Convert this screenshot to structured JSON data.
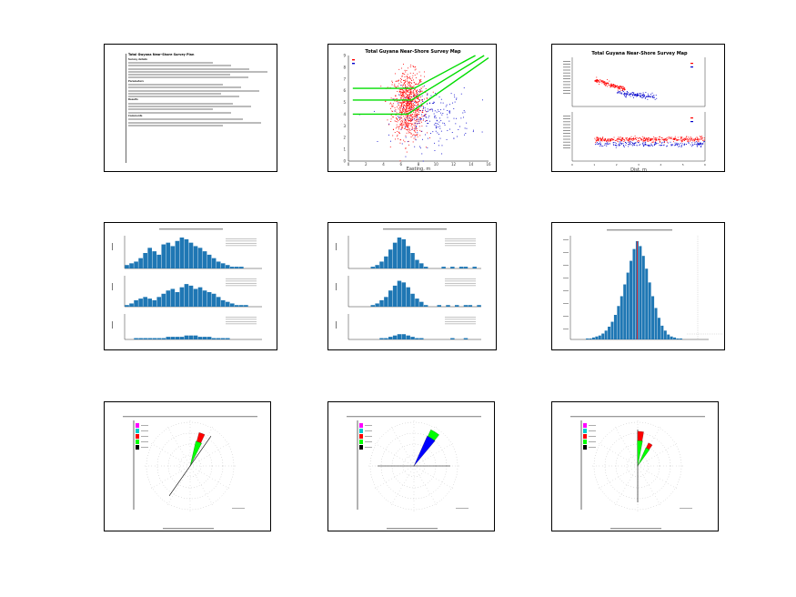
{
  "summary_panel": {
    "title": "Total Gwyana Near-Shore Survey Plan",
    "sections": [
      {
        "heading": "Survey details",
        "lines": 6
      },
      {
        "heading": "Parameters",
        "lines": 5
      },
      {
        "heading": "Results",
        "lines": 4
      },
      {
        "heading": "Comments",
        "lines": 3
      }
    ]
  },
  "chart_data": [
    {
      "id": "scatter_survey",
      "type": "scatter",
      "title": "Total Guyana Near-Shore Survey Map",
      "xlabel": "Easting, m",
      "ylabel": "",
      "xlim": [
        0,
        16
      ],
      "ylim": [
        0,
        9
      ],
      "xticks": [
        "0",
        "2",
        "4",
        "6",
        "8",
        "10",
        "12",
        "14",
        "16"
      ],
      "yticks": [
        "0",
        "1",
        "2",
        "3",
        "4",
        "5",
        "6",
        "7",
        "8",
        "9"
      ],
      "series": [
        {
          "name": "",
          "color": "#ff0000",
          "cluster": {
            "cx": 6.8,
            "cy": 4.8,
            "sx": 0.9,
            "sy": 1.4,
            "n": 900
          }
        },
        {
          "name": "",
          "color": "#0000cc",
          "cluster": {
            "cx": 9.5,
            "cy": 3.8,
            "sx": 2.2,
            "sy": 1.2,
            "n": 220
          }
        }
      ],
      "lines": [
        {
          "color": "#00dd00",
          "points": [
            [
              0.5,
              6.2
            ],
            [
              7.5,
              6.2
            ],
            [
              14.5,
              9.0
            ]
          ]
        },
        {
          "color": "#00dd00",
          "points": [
            [
              0.5,
              5.2
            ],
            [
              7.2,
              5.2
            ],
            [
              15.5,
              9.0
            ]
          ]
        },
        {
          "color": "#00dd00",
          "points": [
            [
              0.5,
              4.0
            ],
            [
              6.8,
              4.0
            ],
            [
              16.0,
              8.8
            ]
          ]
        }
      ],
      "legend": "top-left",
      "grid": false
    },
    {
      "id": "stacked_survey",
      "type": "scatter",
      "title": "Total Guyana Near-Shore Survey Map",
      "xlabel": "Dist, m",
      "xlim": [
        0,
        6
      ],
      "legend": "right",
      "grid": false,
      "subplots": [
        {
          "series": [
            {
              "name": "",
              "color": "#ff0000",
              "band": {
                "x0": 1.0,
                "x1": 2.4,
                "y0": 0.55,
                "y1": 0.35,
                "n": 160
              }
            },
            {
              "name": "",
              "color": "#0000cc",
              "band": {
                "x0": 2.0,
                "x1": 3.8,
                "y0": 0.28,
                "y1": 0.2,
                "n": 140
              }
            }
          ]
        },
        {
          "series": [
            {
              "name": "",
              "color": "#0000cc",
              "band": {
                "x0": 1.0,
                "x1": 6.0,
                "y0": 0.35,
                "y1": 0.35,
                "n": 200
              }
            },
            {
              "name": "",
              "color": "#ff0000",
              "band": {
                "x0": 1.0,
                "x1": 6.0,
                "y0": 0.45,
                "y1": 0.45,
                "n": 380
              }
            }
          ]
        }
      ],
      "xticks": [
        "0",
        "1",
        "2",
        "3",
        "4",
        "5",
        "6"
      ]
    },
    {
      "id": "hist_stack_a",
      "type": "bar",
      "color": "#1f77b4",
      "subplots": [
        {
          "values": [
            2,
            3,
            4,
            6,
            9,
            12,
            10,
            8,
            14,
            15,
            13,
            16,
            18,
            17,
            15,
            13,
            12,
            10,
            8,
            6,
            4,
            3,
            2,
            1,
            1,
            1,
            0,
            0,
            0,
            0
          ]
        },
        {
          "values": [
            1,
            2,
            4,
            5,
            6,
            5,
            4,
            6,
            8,
            10,
            11,
            9,
            12,
            14,
            13,
            11,
            12,
            10,
            9,
            8,
            6,
            4,
            3,
            2,
            1,
            1,
            1,
            0,
            0,
            0
          ]
        },
        {
          "values": [
            0,
            0,
            1,
            1,
            1,
            1,
            1,
            1,
            1,
            2,
            2,
            2,
            2,
            3,
            3,
            3,
            2,
            2,
            2,
            1,
            1,
            1,
            1,
            0,
            0,
            0,
            0,
            0,
            0,
            0
          ]
        }
      ]
    },
    {
      "id": "hist_stack_b",
      "type": "bar",
      "color": "#1f77b4",
      "subplots": [
        {
          "values": [
            0,
            0,
            0,
            0,
            0,
            1,
            2,
            4,
            7,
            11,
            15,
            18,
            17,
            13,
            9,
            5,
            3,
            1,
            0,
            0,
            0,
            1,
            0,
            1,
            0,
            1,
            1,
            0,
            1,
            0
          ]
        },
        {
          "values": [
            0,
            0,
            0,
            0,
            0,
            1,
            2,
            4,
            6,
            10,
            13,
            16,
            15,
            12,
            8,
            5,
            3,
            1,
            0,
            0,
            1,
            0,
            1,
            0,
            1,
            0,
            1,
            1,
            0,
            1
          ]
        },
        {
          "values": [
            0,
            0,
            0,
            0,
            0,
            0,
            0,
            1,
            1,
            2,
            3,
            4,
            4,
            3,
            2,
            1,
            1,
            0,
            0,
            0,
            0,
            0,
            0,
            1,
            0,
            0,
            1,
            0,
            0,
            0
          ]
        }
      ]
    },
    {
      "id": "hist_single",
      "type": "bar",
      "color": "#1f77b4",
      "values": [
        0,
        0,
        1,
        1,
        2,
        3,
        4,
        6,
        9,
        13,
        18,
        25,
        34,
        44,
        56,
        68,
        80,
        92,
        100,
        95,
        85,
        72,
        58,
        44,
        32,
        22,
        14,
        9,
        5,
        3,
        2,
        1,
        1,
        0,
        0
      ],
      "marker_color": "#ff2222",
      "marker_index": 18
    },
    {
      "id": "rose_1",
      "type": "pie",
      "legend": "top-left",
      "legend_colors": [
        "#ff00ff",
        "#00cccc",
        "#ff0000",
        "#00ff00",
        "#000000"
      ],
      "wedges": [
        {
          "color": "#00ff00",
          "angle": 70,
          "width": 14,
          "r0": 0,
          "r1": 28
        },
        {
          "color": "#ff0000",
          "angle": 70,
          "width": 10,
          "r0": 28,
          "r1": 38
        }
      ],
      "line_angle": 235
    },
    {
      "id": "rose_2",
      "type": "pie",
      "legend": "top-left",
      "legend_colors": [
        "#ff00ff",
        "#00cccc",
        "#ff0000",
        "#00ff00",
        "#000000"
      ],
      "wedges": [
        {
          "color": "#0000ff",
          "angle": 58,
          "width": 16,
          "r0": 0,
          "r1": 36
        },
        {
          "color": "#00ff00",
          "angle": 58,
          "width": 14,
          "r0": 36,
          "r1": 44
        }
      ],
      "line_angle": 0
    },
    {
      "id": "rose_3",
      "type": "pie",
      "legend": "top-left",
      "legend_colors": [
        "#ff00ff",
        "#00cccc",
        "#ff0000",
        "#00ff00",
        "#000000"
      ],
      "wedges": [
        {
          "color": "#00ff00",
          "angle": 85,
          "width": 12,
          "r0": 0,
          "r1": 28
        },
        {
          "color": "#ff0000",
          "angle": 85,
          "width": 10,
          "r0": 28,
          "r1": 38
        },
        {
          "color": "#00ff00",
          "angle": 60,
          "width": 12,
          "r0": 0,
          "r1": 22
        },
        {
          "color": "#ff0000",
          "angle": 60,
          "width": 10,
          "r0": 22,
          "r1": 28
        }
      ],
      "line_angle": 270
    }
  ]
}
